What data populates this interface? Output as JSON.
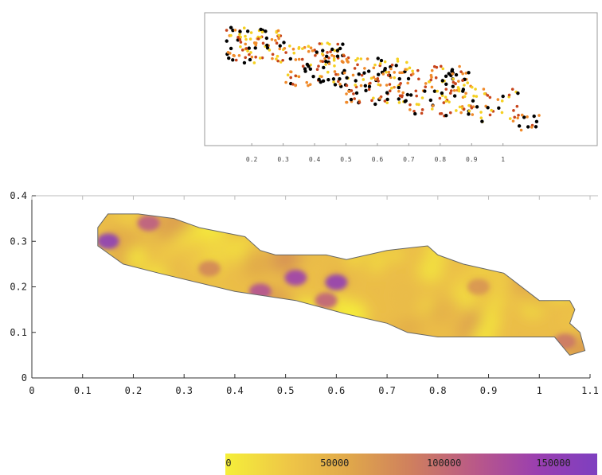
{
  "chart_data": [
    {
      "type": "scatter",
      "x_ticks": [
        "0.2",
        "0.3",
        "0.4",
        "0.5",
        "0.6",
        "0.7",
        "0.8",
        "0.9",
        "1"
      ],
      "xlim": [
        0.05,
        1.3
      ],
      "ylim": [
        0,
        0.45
      ],
      "grid": false,
      "point_colors": [
        "#000000",
        "#c8451c",
        "#f08a2a",
        "#f5d020"
      ],
      "clusters": [
        {
          "x": [
            0.12,
            0.3
          ],
          "y": [
            0.28,
            0.4
          ],
          "n": 90
        },
        {
          "x": [
            0.3,
            0.5
          ],
          "y": [
            0.2,
            0.35
          ],
          "n": 110
        },
        {
          "x": [
            0.5,
            0.7
          ],
          "y": [
            0.14,
            0.3
          ],
          "n": 120
        },
        {
          "x": [
            0.7,
            0.9
          ],
          "y": [
            0.1,
            0.27
          ],
          "n": 110
        },
        {
          "x": [
            0.9,
            1.05
          ],
          "y": [
            0.08,
            0.2
          ],
          "n": 40
        },
        {
          "x": [
            1.05,
            1.12
          ],
          "y": [
            0.05,
            0.12
          ],
          "n": 12
        }
      ]
    },
    {
      "type": "heatmap",
      "xlim": [
        0,
        1.1
      ],
      "ylim": [
        0,
        0.4
      ],
      "x_ticks": [
        "0",
        "0.1",
        "0.2",
        "0.3",
        "0.4",
        "0.5",
        "0.6",
        "0.7",
        "0.8",
        "0.9",
        "1",
        "1.1"
      ],
      "y_ticks": [
        "0",
        "0.1",
        "0.2",
        "0.3",
        "0.4"
      ],
      "grid": false,
      "outline": [
        [
          0.13,
          0.29
        ],
        [
          0.13,
          0.33
        ],
        [
          0.15,
          0.36
        ],
        [
          0.21,
          0.36
        ],
        [
          0.28,
          0.35
        ],
        [
          0.33,
          0.33
        ],
        [
          0.42,
          0.31
        ],
        [
          0.45,
          0.28
        ],
        [
          0.48,
          0.27
        ],
        [
          0.58,
          0.27
        ],
        [
          0.62,
          0.26
        ],
        [
          0.7,
          0.28
        ],
        [
          0.78,
          0.29
        ],
        [
          0.8,
          0.27
        ],
        [
          0.85,
          0.25
        ],
        [
          0.93,
          0.23
        ],
        [
          1.0,
          0.17
        ],
        [
          1.06,
          0.17
        ],
        [
          1.07,
          0.15
        ],
        [
          1.06,
          0.12
        ],
        [
          1.08,
          0.1
        ],
        [
          1.09,
          0.06
        ],
        [
          1.06,
          0.05
        ],
        [
          1.03,
          0.09
        ],
        [
          0.95,
          0.09
        ],
        [
          0.8,
          0.09
        ],
        [
          0.74,
          0.1
        ],
        [
          0.7,
          0.12
        ],
        [
          0.62,
          0.14
        ],
        [
          0.52,
          0.17
        ],
        [
          0.4,
          0.19
        ],
        [
          0.25,
          0.23
        ],
        [
          0.18,
          0.25
        ],
        [
          0.13,
          0.29
        ]
      ],
      "hotspots": [
        {
          "x": 0.15,
          "y": 0.3,
          "value": 155000
        },
        {
          "x": 0.23,
          "y": 0.34,
          "value": 110000
        },
        {
          "x": 0.45,
          "y": 0.19,
          "value": 120000
        },
        {
          "x": 0.52,
          "y": 0.22,
          "value": 140000
        },
        {
          "x": 0.6,
          "y": 0.21,
          "value": 150000
        },
        {
          "x": 0.58,
          "y": 0.17,
          "value": 105000
        },
        {
          "x": 1.05,
          "y": 0.08,
          "value": 90000
        },
        {
          "x": 0.88,
          "y": 0.2,
          "value": 70000
        },
        {
          "x": 0.35,
          "y": 0.24,
          "value": 80000
        }
      ],
      "background_value": 35000
    },
    {
      "type": "colorbar",
      "range": [
        0,
        170000
      ],
      "tick_labels": [
        "0",
        "50000",
        "100000",
        "150000"
      ],
      "tick_values": [
        0,
        50000,
        100000,
        150000
      ],
      "colors": [
        "#f5ef3a",
        "#eec447",
        "#e0a84a",
        "#cf7f5e",
        "#b8578a",
        "#9a3fb0",
        "#7e3fc0"
      ]
    }
  ]
}
